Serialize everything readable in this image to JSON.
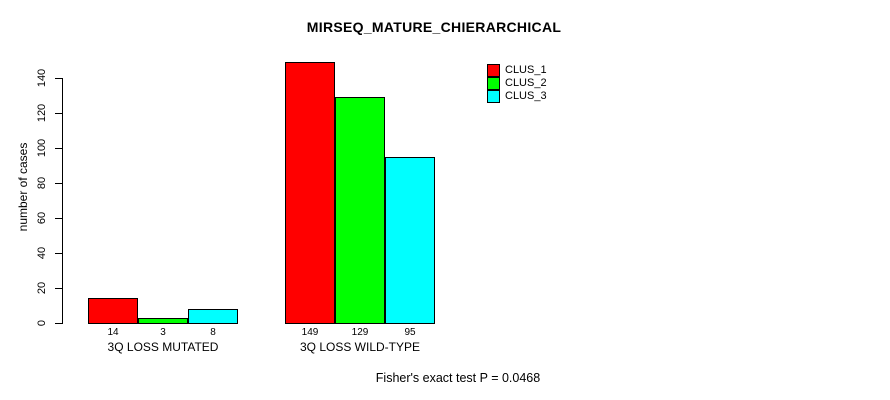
{
  "chart_data": {
    "type": "bar",
    "title": "MIRSEQ_MATURE_CHIERARCHICAL",
    "ylabel": "number of cases",
    "xlabel": "",
    "ylim": [
      0,
      150
    ],
    "yticks": [
      0,
      20,
      40,
      60,
      80,
      100,
      120,
      140
    ],
    "grid": false,
    "legend_position": "top-right",
    "categories": [
      "3Q LOSS MUTATED",
      "3Q LOSS WILD-TYPE"
    ],
    "series": [
      {
        "name": "CLUS_1",
        "color": "#ff0000",
        "values": [
          14,
          149
        ]
      },
      {
        "name": "CLUS_2",
        "color": "#00ff00",
        "values": [
          3,
          129
        ]
      },
      {
        "name": "CLUS_3",
        "color": "#00ffff",
        "values": [
          8,
          95
        ]
      }
    ],
    "show_value_labels": true,
    "annotation": "Fisher's exact test P = 0.0468"
  },
  "colors": {
    "background": "#ffffff",
    "bar_border": "#000000",
    "axis": "#000000",
    "text": "#000000"
  }
}
